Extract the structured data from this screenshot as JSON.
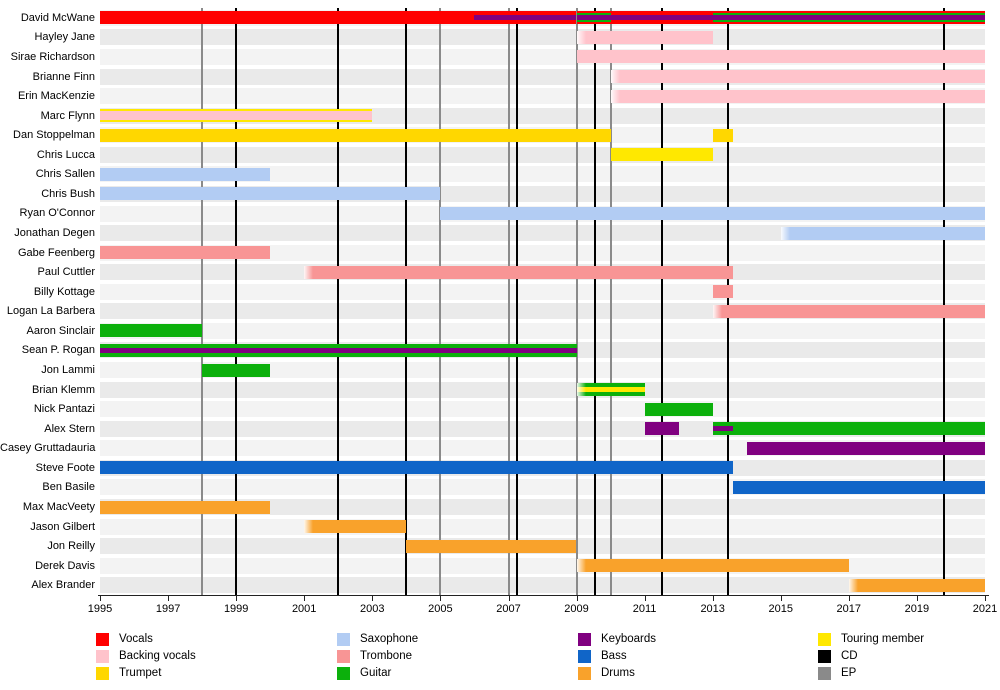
{
  "chart_data": {
    "type": "bar",
    "subtype": "band-member-timeline",
    "title": "",
    "xlabel": "",
    "ylabel": "",
    "grid": false,
    "x_axis": {
      "min": 1995,
      "max": 2021,
      "tick_years": [
        1995,
        1997,
        1999,
        2001,
        2003,
        2005,
        2007,
        2009,
        2011,
        2013,
        2015,
        2017,
        2019,
        2021
      ]
    },
    "colors": {
      "vocals": "#ff0000",
      "backing_vocals": "#ffc3cb",
      "trumpet": "#ffd700",
      "saxophone": "#b2ccf3",
      "trombone": "#f89595",
      "guitar": "#0cb00c",
      "keyboards": "#800080",
      "bass": "#1065c8",
      "drums": "#f9a22b",
      "touring": "#ffe800",
      "cd_line": "#000000",
      "ep_line": "#8a8a8a",
      "row_stripe_a": "#f3f3f3",
      "row_stripe_b": "#eaeaea"
    },
    "members": [
      {
        "name": "David McWane",
        "segments": [
          {
            "from": 1995,
            "to": 2006,
            "color": "vocals"
          },
          {
            "from": 2006,
            "to": 2009,
            "color": "vocals",
            "center": "keyboards"
          },
          {
            "from": 2009,
            "to": 2010,
            "color": "vocals",
            "inner": "guitar",
            "center": "keyboards"
          },
          {
            "from": 2010,
            "to": 2013,
            "color": "vocals",
            "center": "keyboards"
          },
          {
            "from": 2013,
            "to": 2021,
            "color": "vocals",
            "inner": "guitar",
            "center": "keyboards"
          }
        ]
      },
      {
        "name": "Hayley Jane",
        "segments": [
          {
            "from": 2009,
            "to": 2013,
            "color": "backing_vocals",
            "fade": true
          }
        ]
      },
      {
        "name": "Sirae Richardson",
        "segments": [
          {
            "from": 2009,
            "to": 2021,
            "color": "backing_vocals"
          }
        ]
      },
      {
        "name": "Brianne Finn",
        "segments": [
          {
            "from": 2010,
            "to": 2021,
            "color": "backing_vocals",
            "fade": true
          }
        ]
      },
      {
        "name": "Erin MacKenzie",
        "segments": [
          {
            "from": 2010,
            "to": 2021,
            "color": "backing_vocals",
            "fade": true
          }
        ]
      },
      {
        "name": "Marc Flynn",
        "segments": [
          {
            "from": 1995,
            "to": 2003,
            "color": "touring",
            "inner": "backing_vocals"
          }
        ]
      },
      {
        "name": "Dan Stoppelman",
        "segments": [
          {
            "from": 1995,
            "to": 2010,
            "color": "trumpet"
          },
          {
            "from": 2013,
            "to": 2013.6,
            "color": "trumpet"
          }
        ]
      },
      {
        "name": "Chris Lucca",
        "segments": [
          {
            "from": 2010,
            "to": 2013,
            "color": "touring"
          }
        ]
      },
      {
        "name": "Chris Sallen",
        "segments": [
          {
            "from": 1995,
            "to": 2000,
            "color": "saxophone"
          }
        ]
      },
      {
        "name": "Chris Bush",
        "segments": [
          {
            "from": 1995,
            "to": 2005,
            "color": "saxophone"
          }
        ]
      },
      {
        "name": "Ryan O'Connor",
        "segments": [
          {
            "from": 2005,
            "to": 2021,
            "color": "saxophone"
          }
        ]
      },
      {
        "name": "Jonathan Degen",
        "segments": [
          {
            "from": 2015,
            "to": 2021,
            "color": "saxophone",
            "fade": true
          }
        ]
      },
      {
        "name": "Gabe Feenberg",
        "segments": [
          {
            "from": 1995,
            "to": 2000,
            "color": "trombone"
          }
        ]
      },
      {
        "name": "Paul Cuttler",
        "segments": [
          {
            "from": 2001,
            "to": 2013.6,
            "color": "trombone",
            "fade": true
          }
        ]
      },
      {
        "name": "Billy Kottage",
        "segments": [
          {
            "from": 2013,
            "to": 2013.6,
            "color": "trombone"
          }
        ]
      },
      {
        "name": "Logan La Barbera",
        "segments": [
          {
            "from": 2013,
            "to": 2021,
            "color": "trombone",
            "fade": true
          }
        ]
      },
      {
        "name": "Aaron Sinclair",
        "segments": [
          {
            "from": 1995,
            "to": 1998,
            "color": "guitar"
          }
        ]
      },
      {
        "name": "Sean P. Rogan",
        "segments": [
          {
            "from": 1995,
            "to": 2009,
            "color": "guitar",
            "center": "keyboards"
          }
        ]
      },
      {
        "name": "Jon Lammi",
        "segments": [
          {
            "from": 1998,
            "to": 2000,
            "color": "guitar"
          }
        ]
      },
      {
        "name": "Brian Klemm",
        "segments": [
          {
            "from": 2009,
            "to": 2011,
            "color": "guitar",
            "center": "touring",
            "fade": true
          }
        ]
      },
      {
        "name": "Nick Pantazi",
        "segments": [
          {
            "from": 2011,
            "to": 2013,
            "color": "guitar"
          }
        ]
      },
      {
        "name": "Alex Stern",
        "segments": [
          {
            "from": 2011,
            "to": 2012,
            "color": "keyboards"
          },
          {
            "from": 2013,
            "to": 2013.6,
            "color": "guitar",
            "center": "keyboards"
          },
          {
            "from": 2013.6,
            "to": 2021,
            "color": "guitar"
          }
        ]
      },
      {
        "name": "Casey Gruttadauria",
        "segments": [
          {
            "from": 2014,
            "to": 2021,
            "color": "keyboards"
          }
        ]
      },
      {
        "name": "Steve Foote",
        "segments": [
          {
            "from": 1995,
            "to": 2013.6,
            "color": "bass"
          }
        ]
      },
      {
        "name": "Ben Basile",
        "segments": [
          {
            "from": 2013.6,
            "to": 2021,
            "color": "bass"
          }
        ]
      },
      {
        "name": "Max MacVeety",
        "segments": [
          {
            "from": 1995,
            "to": 2000,
            "color": "drums"
          }
        ]
      },
      {
        "name": "Jason Gilbert",
        "segments": [
          {
            "from": 2001,
            "to": 2004,
            "color": "drums",
            "fade": true
          }
        ]
      },
      {
        "name": "Jon Reilly",
        "segments": [
          {
            "from": 2004,
            "to": 2009,
            "color": "drums"
          }
        ]
      },
      {
        "name": "Derek Davis",
        "segments": [
          {
            "from": 2009,
            "to": 2017,
            "color": "drums",
            "fade": true
          }
        ]
      },
      {
        "name": "Alex Brander",
        "segments": [
          {
            "from": 2017,
            "to": 2021,
            "color": "drums",
            "fade": true
          }
        ]
      }
    ],
    "releases": [
      {
        "year": 1998.0,
        "type": "EP"
      },
      {
        "year": 1999.0,
        "type": "CD"
      },
      {
        "year": 2002.0,
        "type": "CD"
      },
      {
        "year": 2004.0,
        "type": "CD"
      },
      {
        "year": 2005.0,
        "type": "EP"
      },
      {
        "year": 2007.0,
        "type": "EP"
      },
      {
        "year": 2007.25,
        "type": "CD"
      },
      {
        "year": 2009.0,
        "type": "EP"
      },
      {
        "year": 2009.55,
        "type": "CD"
      },
      {
        "year": 2010.0,
        "type": "EP"
      },
      {
        "year": 2011.5,
        "type": "CD"
      },
      {
        "year": 2013.45,
        "type": "CD"
      },
      {
        "year": 2019.8,
        "type": "CD"
      }
    ],
    "legend": {
      "columns": [
        [
          {
            "label": "Vocals",
            "color": "vocals"
          },
          {
            "label": "Backing vocals",
            "color": "backing_vocals"
          },
          {
            "label": "Trumpet",
            "color": "trumpet"
          }
        ],
        [
          {
            "label": "Saxophone",
            "color": "saxophone"
          },
          {
            "label": "Trombone",
            "color": "trombone"
          },
          {
            "label": "Guitar",
            "color": "guitar"
          }
        ],
        [
          {
            "label": "Keyboards",
            "color": "keyboards"
          },
          {
            "label": "Bass",
            "color": "bass"
          },
          {
            "label": "Drums",
            "color": "drums"
          }
        ],
        [
          {
            "label": "Touring member",
            "color": "touring"
          },
          {
            "label": "CD",
            "color": "cd_line"
          },
          {
            "label": "EP",
            "color": "ep_line"
          }
        ]
      ]
    }
  }
}
